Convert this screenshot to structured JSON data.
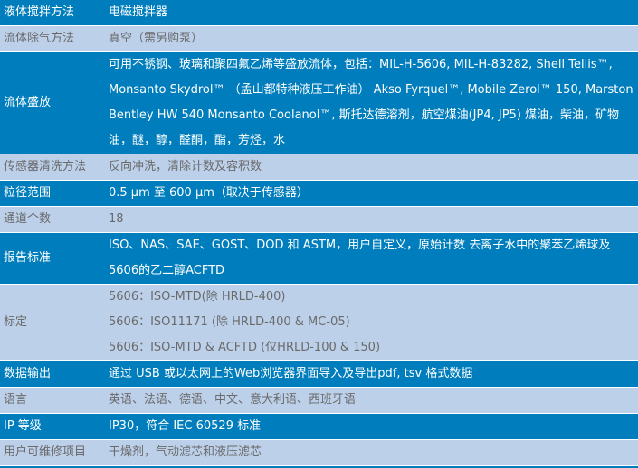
{
  "colors": {
    "blue_row": "#007dbc",
    "gray_row": "#bcd0ea",
    "blue_text": "#ffffff",
    "gray_text": "#6a6a6a"
  },
  "rows": [
    {
      "label": "液体搅拌方法",
      "value": [
        "电磁搅拌器"
      ],
      "style": "blue"
    },
    {
      "label": "流体除气方法",
      "value": [
        "真空（需另购泵）"
      ],
      "style": "gray"
    },
    {
      "label": "流体盛放",
      "value": [
        "可用不锈钢、玻璃和聚四氟乙烯等盛放流体，包括：MIL-H-5606, MIL-H-83282, Shell Tellis™, Monsanto Skydrol™ （孟山都特种液压工作油） Akso Fyrquel™, Mobile Zerol™ 150, Marston Bentley HW 540 Monsanto Coolanol™, 斯托达德溶剂，航空煤油(JP4, JP5) 煤油，柴油，矿物油，醚，醇，醛酮，酯，芳烃，水"
      ],
      "style": "blue"
    },
    {
      "label": "传感器清洗方法",
      "value": [
        "反向冲洗，清除计数及容积数"
      ],
      "style": "gray"
    },
    {
      "label": "粒径范围",
      "value": [
        "0.5 µm 至 600 µm（取决于传感器）"
      ],
      "style": "blue"
    },
    {
      "label": "通道个数",
      "value": [
        "18"
      ],
      "style": "gray"
    },
    {
      "label": "报告标准",
      "value": [
        "ISO、NAS、SAE、GOST、DOD 和 ASTM，用户自定义，原始计数 去离子水中的聚苯乙烯球及5606的乙二醇ACFTD"
      ],
      "style": "blue"
    },
    {
      "label": "标定",
      "value": [
        "5606：ISO-MTD(除 HRLD-400)",
        "5606：ISO11171 (除 HRLD-400 & MC-05)",
        "5606：ISO-MTD & ACFTD (仅HRLD-100 & 150)"
      ],
      "style": "gray"
    },
    {
      "label": "数据输出",
      "value": [
        "通过 USB 或以太网上的Web浏览器界面导入及导出pdf, tsv 格式数据"
      ],
      "style": "blue"
    },
    {
      "label": "语言",
      "value": [
        "英语、法语、德语、中文、意大利语、西班牙语"
      ],
      "style": "gray"
    },
    {
      "label": "IP 等级",
      "value": [
        "IP30，符合 IEC 60529 标准"
      ],
      "style": "blue"
    },
    {
      "label": "用户可维修项目",
      "value": [
        "干燥剂，气动滤芯和液压滤芯"
      ],
      "style": "gray"
    }
  ]
}
